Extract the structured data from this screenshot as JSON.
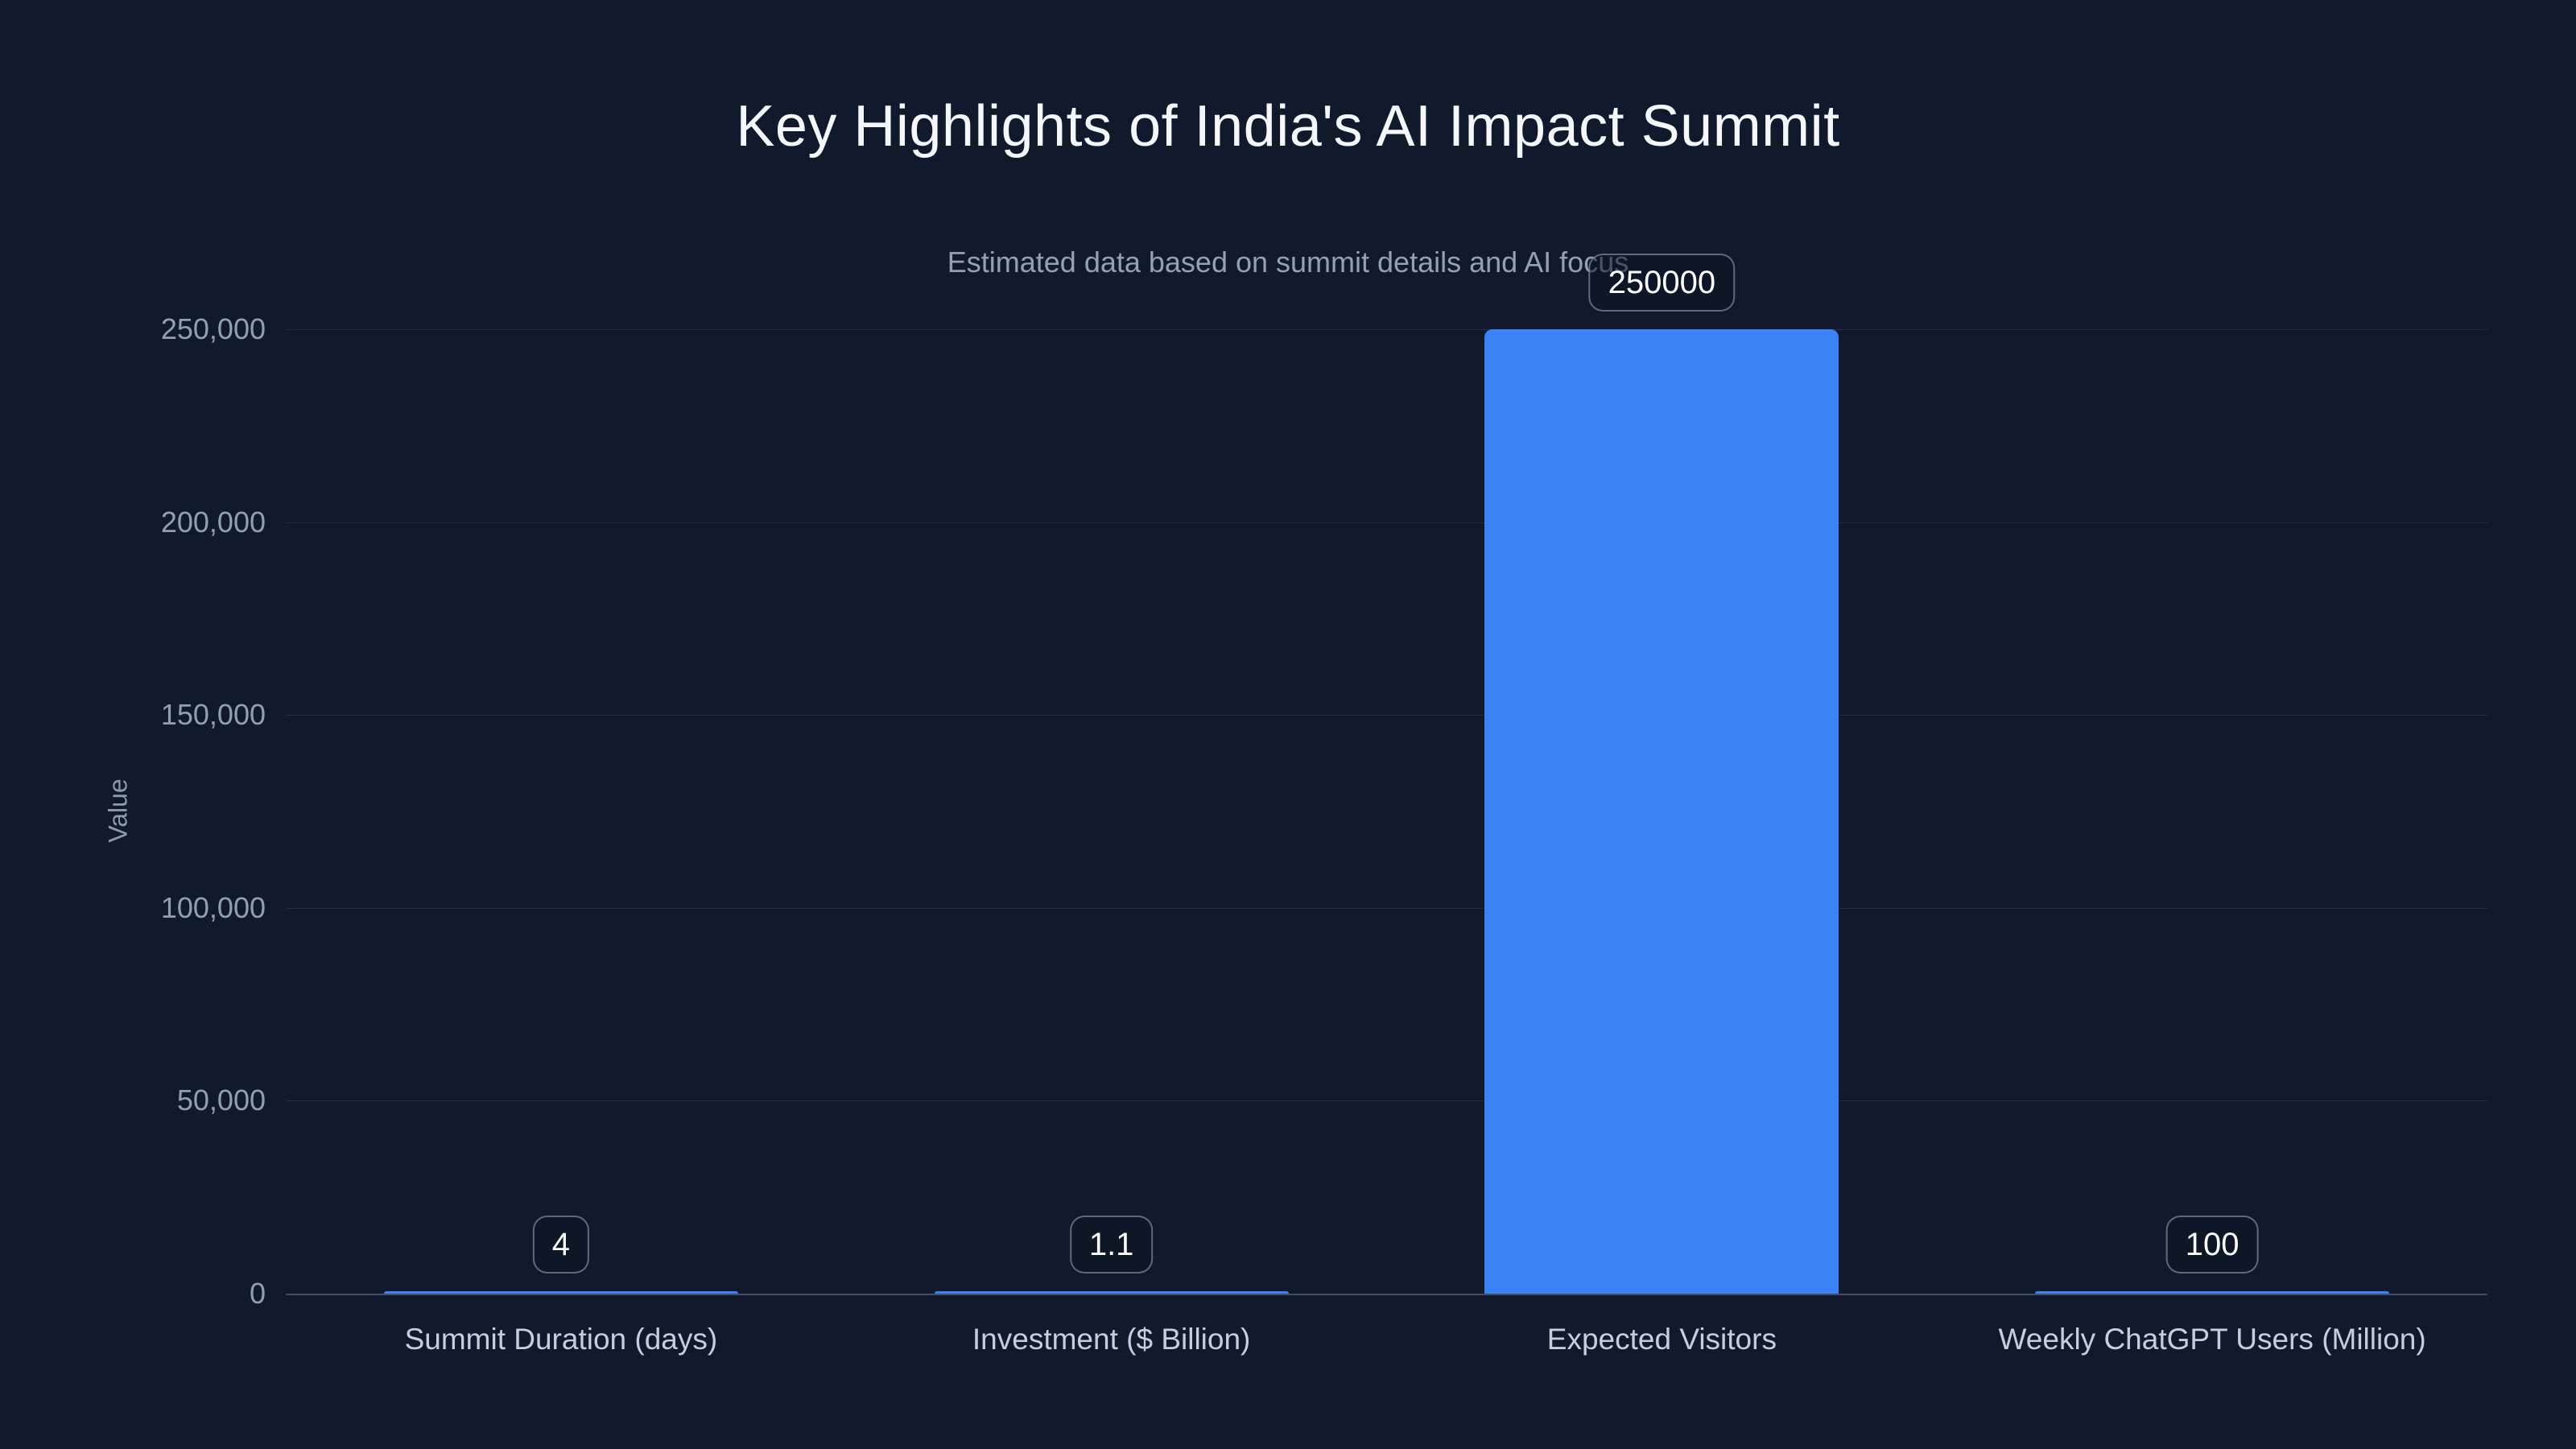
{
  "chart_data": {
    "type": "bar",
    "title": "Key Highlights of India's AI Impact Summit",
    "subtitle": "Estimated data based on summit details and AI focus",
    "xlabel": "",
    "ylabel": "Value",
    "categories": [
      "Summit Duration (days)",
      "Investment ($ Billion)",
      "Expected Visitors",
      "Weekly ChatGPT Users (Million)"
    ],
    "values": [
      4,
      1.1,
      250000,
      100
    ],
    "value_labels": [
      "4",
      "1.1",
      "250000",
      "100"
    ],
    "ylim": [
      0,
      250000
    ],
    "y_ticks": [
      0,
      50000,
      100000,
      150000,
      200000,
      250000
    ],
    "y_tick_labels": [
      "0",
      "50,000",
      "100,000",
      "150,000",
      "200,000",
      "250,000"
    ],
    "grid": true,
    "legend": false,
    "bar_orientation": "vertical"
  },
  "colors": {
    "background": "#101a2c",
    "bar_color": "#3b82f6",
    "title_color": "#f4f7fb",
    "subtitle_color": "#94a1b5",
    "tick_color": "#8fa0b5",
    "category_color": "#c5cedb",
    "grid_color": "rgba(148,163,184,0.14)",
    "axis_color": "rgba(148,163,184,0.38)",
    "label_box_border": "rgba(160,173,192,0.55)",
    "label_box_bg": "rgba(13,22,38,0.55)",
    "value_label_color": "#ffffff"
  }
}
